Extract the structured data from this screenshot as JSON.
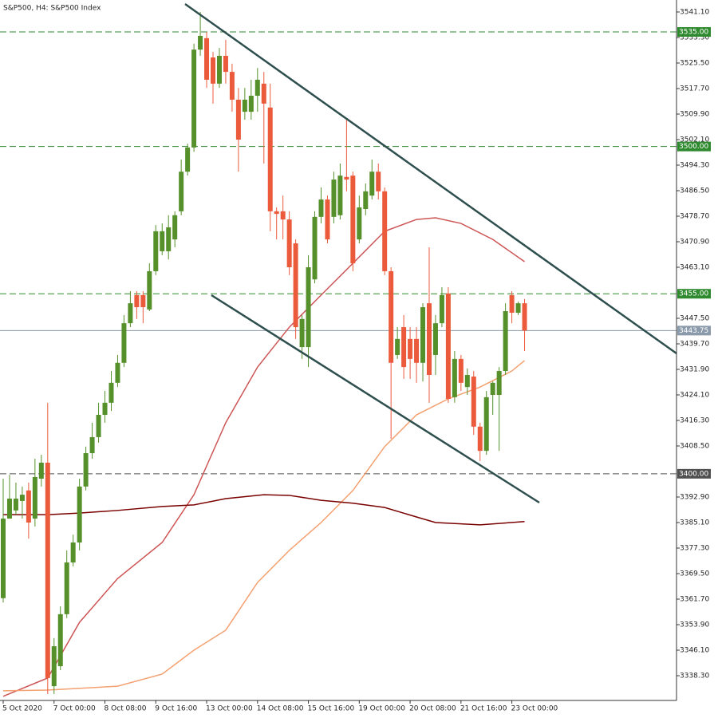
{
  "chart_data": {
    "type": "candlestick",
    "title": "S&P500, H4:  S&P500 Index",
    "categories": [
      "5 Oct 2020",
      null,
      null,
      null,
      null,
      null,
      null,
      null,
      "7 Oct 00:00",
      null,
      null,
      null,
      null,
      null,
      null,
      null,
      "8 Oct 08:00",
      null,
      null,
      null,
      null,
      null,
      null,
      null,
      "9 Oct 16:00",
      null,
      null,
      null,
      null,
      null,
      null,
      null,
      "13 Oct 00:00",
      null,
      null,
      null,
      null,
      null,
      null,
      null,
      "14 Oct 08:00",
      null,
      null,
      null,
      null,
      null,
      null,
      null,
      "15 Oct 16:00",
      null,
      null,
      null,
      null,
      null,
      null,
      null,
      "19 Oct 00:00",
      null,
      null,
      null,
      null,
      null,
      null,
      null,
      "20 Oct 08:00",
      null,
      null,
      null,
      null,
      null,
      null,
      null,
      "21 Oct 16:00",
      null,
      null,
      null,
      null,
      null,
      null,
      null,
      "23 Oct 00:00",
      null,
      null
    ],
    "open": [
      3362.0,
      3386.3,
      3388.8,
      3391.7,
      3394.9,
      3386.3,
      3398.5,
      3403.4,
      3335.1,
      3341.2,
      3357.1,
      3372.9,
      3379.0,
      3396.1,
      3406.3,
      3411.2,
      3418.0,
      3421.7,
      3427.8,
      3433.9,
      3446.0,
      3454.6,
      3454.6,
      3450.2,
      3461.9,
      3468.0,
      3468.0,
      3471.6,
      3480.2,
      3492.3,
      3499.7,
      3529.6,
      3533.1,
      3527.2,
      3519.2,
      3527.7,
      3522.8,
      3514.3,
      3510.6,
      3510.6,
      3515.5,
      3519.2,
      3511.9,
      3480.2,
      3480.2,
      3477.7,
      3470.4,
      3438.7,
      3438.7,
      3459.4,
      3478.5,
      3483.8,
      3478.5,
      3479.0,
      3490.7,
      3491.1,
      3471.6,
      3480.9,
      3485.0,
      3492.3,
      3486.3,
      3461.9,
      3436.3,
      3444.8,
      3441.2,
      3441.2,
      3433.9,
      3452.1,
      3436.3,
      3446.0,
      3455.1,
      3423.4,
      3435.1,
      3426.5,
      3429.7,
      3414.4,
      3407.0,
      3424.1,
      3424.1,
      3431.4,
      3454.6,
      3449.2,
      3452.1
    ],
    "high": [
      3398.5,
      3399.7,
      3397.3,
      3396.1,
      3397.3,
      3404.6,
      3405.8,
      3421.7,
      3349.8,
      3359.5,
      3376.6,
      3381.4,
      3398.5,
      3408.3,
      3415.6,
      3421.7,
      3425.3,
      3431.4,
      3436.3,
      3448.5,
      3455.8,
      3455.8,
      3455.8,
      3464.3,
      3476.0,
      3476.5,
      3479.0,
      3480.2,
      3496.0,
      3500.9,
      3531.4,
      3541.1,
      3535.0,
      3528.9,
      3530.1,
      3532.6,
      3525.3,
      3517.9,
      3517.9,
      3520.4,
      3524.0,
      3522.8,
      3519.2,
      3481.4,
      3485.0,
      3480.2,
      3471.6,
      3448.5,
      3466.8,
      3480.2,
      3487.5,
      3485.0,
      3492.3,
      3494.8,
      3508.2,
      3492.3,
      3485.0,
      3488.7,
      3496.0,
      3494.8,
      3487.5,
      3463.1,
      3444.8,
      3448.5,
      3444.8,
      3444.8,
      3452.1,
      3469.2,
      3448.5,
      3457.0,
      3457.0,
      3437.5,
      3436.3,
      3432.2,
      3431.4,
      3415.6,
      3425.3,
      3428.2,
      3432.6,
      3452.1,
      3455.8,
      3452.6,
      3453.4
    ],
    "low": [
      3360.7,
      3386.3,
      3387.5,
      3386.3,
      3380.2,
      3383.9,
      3396.1,
      3332.7,
      3332.7,
      3340.0,
      3355.9,
      3371.7,
      3376.6,
      3394.9,
      3404.6,
      3409.5,
      3415.6,
      3419.2,
      3426.5,
      3432.6,
      3444.8,
      3447.3,
      3446.0,
      3449.7,
      3460.7,
      3466.8,
      3465.5,
      3469.2,
      3479.0,
      3491.1,
      3498.4,
      3527.7,
      3517.9,
      3513.1,
      3517.9,
      3519.2,
      3510.6,
      3492.3,
      3508.2,
      3508.2,
      3510.6,
      3494.8,
      3474.1,
      3471.6,
      3471.6,
      3460.7,
      3441.2,
      3435.1,
      3432.6,
      3458.2,
      3476.5,
      3470.4,
      3476.5,
      3477.7,
      3486.3,
      3461.9,
      3470.4,
      3479.0,
      3483.8,
      3483.8,
      3460.7,
      3410.7,
      3435.1,
      3429.0,
      3429.0,
      3427.8,
      3428.2,
      3421.7,
      3430.2,
      3444.8,
      3421.7,
      3421.7,
      3425.3,
      3424.1,
      3411.9,
      3403.9,
      3405.8,
      3418.0,
      3407.0,
      3430.2,
      3446.0,
      3448.5,
      3437.5
    ],
    "close": [
      3386.3,
      3392.4,
      3392.4,
      3393.6,
      3385.1,
      3399.0,
      3403.4,
      3337.6,
      3347.3,
      3357.1,
      3372.9,
      3379.0,
      3396.1,
      3406.3,
      3411.2,
      3418.0,
      3421.7,
      3427.8,
      3433.9,
      3446.0,
      3452.1,
      3450.9,
      3450.9,
      3461.9,
      3474.1,
      3474.1,
      3475.3,
      3479.0,
      3492.3,
      3499.7,
      3529.6,
      3533.8,
      3520.4,
      3519.2,
      3527.7,
      3522.8,
      3514.3,
      3502.1,
      3514.3,
      3515.5,
      3520.4,
      3513.1,
      3480.2,
      3479.4,
      3477.7,
      3463.1,
      3444.8,
      3447.3,
      3463.1,
      3478.5,
      3483.8,
      3471.6,
      3489.9,
      3491.1,
      3489.9,
      3464.3,
      3481.4,
      3486.3,
      3492.3,
      3486.3,
      3461.9,
      3433.9,
      3441.2,
      3432.6,
      3435.1,
      3433.9,
      3450.9,
      3430.2,
      3446.0,
      3454.6,
      3422.9,
      3435.1,
      3427.8,
      3430.2,
      3414.4,
      3407.0,
      3423.4,
      3427.8,
      3431.4,
      3449.7,
      3449.2,
      3452.1,
      3443.75
    ],
    "up_color": "#55902b",
    "down_color": "#ec5a3c",
    "ylim": [
      3330.74,
      3544.76
    ],
    "yticks": [
      {
        "value": 3541.1,
        "label": "3541.10"
      },
      {
        "value": 3533.3,
        "label": "3533.30"
      },
      {
        "value": 3525.5,
        "label": "3525.50"
      },
      {
        "value": 3517.7,
        "label": "3517.70"
      },
      {
        "value": 3509.9,
        "label": "3509.90"
      },
      {
        "value": 3502.1,
        "label": "3502.10"
      },
      {
        "value": 3494.3,
        "label": "3494.30"
      },
      {
        "value": 3486.5,
        "label": "3486.50"
      },
      {
        "value": 3478.7,
        "label": "3478.70"
      },
      {
        "value": 3470.9,
        "label": "3470.90"
      },
      {
        "value": 3463.1,
        "label": "3463.10"
      },
      {
        "value": 3447.5,
        "label": "3447.50"
      },
      {
        "value": 3439.7,
        "label": "3439.70"
      },
      {
        "value": 3431.9,
        "label": "3431.90"
      },
      {
        "value": 3424.1,
        "label": "3424.10"
      },
      {
        "value": 3416.3,
        "label": "3416.30"
      },
      {
        "value": 3408.5,
        "label": "3408.50"
      },
      {
        "value": 3392.9,
        "label": "3392.90"
      },
      {
        "value": 3385.1,
        "label": "3385.10"
      },
      {
        "value": 3377.3,
        "label": "3377.30"
      },
      {
        "value": 3369.5,
        "label": "3369.50"
      },
      {
        "value": 3361.7,
        "label": "3361.70"
      },
      {
        "value": 3353.9,
        "label": "3353.90"
      },
      {
        "value": 3346.1,
        "label": "3346.10"
      },
      {
        "value": 3338.3,
        "label": "3338.30"
      }
    ],
    "overlays": [
      {
        "color": "#cd5555",
        "x": [
          0,
          7,
          12,
          18,
          25,
          30,
          35,
          40,
          45,
          50,
          55,
          60,
          65,
          68,
          72,
          77,
          82
        ],
        "values": [
          3332.0,
          3337.6,
          3354.6,
          3368.0,
          3379.0,
          3393.6,
          3415.6,
          3432.6,
          3444.8,
          3454.6,
          3464.3,
          3474.1,
          3477.7,
          3478.2,
          3476.5,
          3471.6,
          3464.8
        ]
      },
      {
        "color": "#f4a070",
        "x": [
          0,
          7,
          18,
          25,
          30,
          35,
          40,
          45,
          50,
          55,
          60,
          65,
          70,
          75,
          80,
          82
        ],
        "values": [
          3333.7,
          3333.9,
          3335.1,
          3338.8,
          3346.1,
          3352.2,
          3366.8,
          3376.6,
          3385.1,
          3394.9,
          3408.3,
          3418.0,
          3422.9,
          3426.5,
          3431.4,
          3434.6
        ]
      },
      {
        "color": "#7a0000",
        "x": [
          0,
          7,
          12,
          18,
          25,
          30,
          35,
          41,
          45,
          50,
          55,
          60,
          65,
          68,
          75,
          82
        ],
        "values": [
          3387.5,
          3387.5,
          3388.0,
          3388.8,
          3390.0,
          3390.5,
          3392.4,
          3393.6,
          3393.4,
          3391.9,
          3391.0,
          3389.7,
          3386.8,
          3385.1,
          3384.4,
          3385.4
        ]
      }
    ],
    "levels": [
      {
        "value": 3535,
        "label": "3535.00",
        "color": "#2f8a2f"
      },
      {
        "value": 3500,
        "label": "3500.00",
        "color": "#2f8a2f"
      },
      {
        "value": 3455,
        "label": "3455.00",
        "color": "#2f8a2f"
      },
      {
        "value": 3400,
        "label": "3400.00",
        "color": "#505050"
      }
    ],
    "current_price": {
      "value": 3443.75,
      "label": "3443.75",
      "color": "#8a9aaa"
    }
  }
}
